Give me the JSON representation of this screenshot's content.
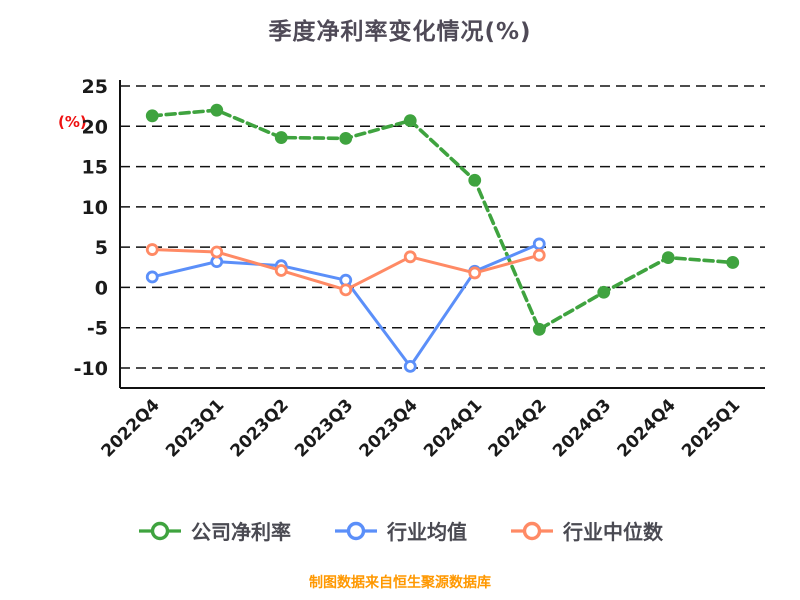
{
  "title": "季度净利率变化情况(%)",
  "y_axis_label": "(%)",
  "source_note": "制图数据来自恒生聚源数据库",
  "colors": {
    "title": "#4f4a57",
    "axis": "#111111",
    "tick_text": "#1a1a1a",
    "y_unit": "#ee1111",
    "legend_text": "#4a4a52",
    "source_text": "#ff9800"
  },
  "chart_data": {
    "type": "line",
    "title": "季度净利率变化情况(%)",
    "ylabel": "(%)",
    "ylim": [
      -10,
      25
    ],
    "ytick_step": 5,
    "grid": "horizontal-dashed",
    "legend_position": "bottom",
    "categories": [
      "2022Q4",
      "2023Q1",
      "2023Q2",
      "2023Q3",
      "2023Q4",
      "2024Q1",
      "2024Q2",
      "2024Q3",
      "2024Q4",
      "2025Q1"
    ],
    "series": [
      {
        "name": "公司净利率",
        "color": "#3fa33f",
        "dashed": true,
        "marker": "filled",
        "values": [
          21.3,
          22.0,
          18.6,
          18.5,
          20.7,
          13.3,
          -5.2,
          -0.6,
          3.7,
          3.1
        ]
      },
      {
        "name": "行业均值",
        "color": "#5b8ff9",
        "dashed": false,
        "marker": "ring",
        "values": [
          1.3,
          3.2,
          2.7,
          0.9,
          -9.8,
          2.0,
          5.4,
          null,
          null,
          null
        ]
      },
      {
        "name": "行业中位数",
        "color": "#ff8a65",
        "dashed": false,
        "marker": "ring",
        "values": [
          4.7,
          4.4,
          2.1,
          -0.3,
          3.8,
          1.8,
          4.0,
          null,
          null,
          null
        ]
      }
    ]
  }
}
